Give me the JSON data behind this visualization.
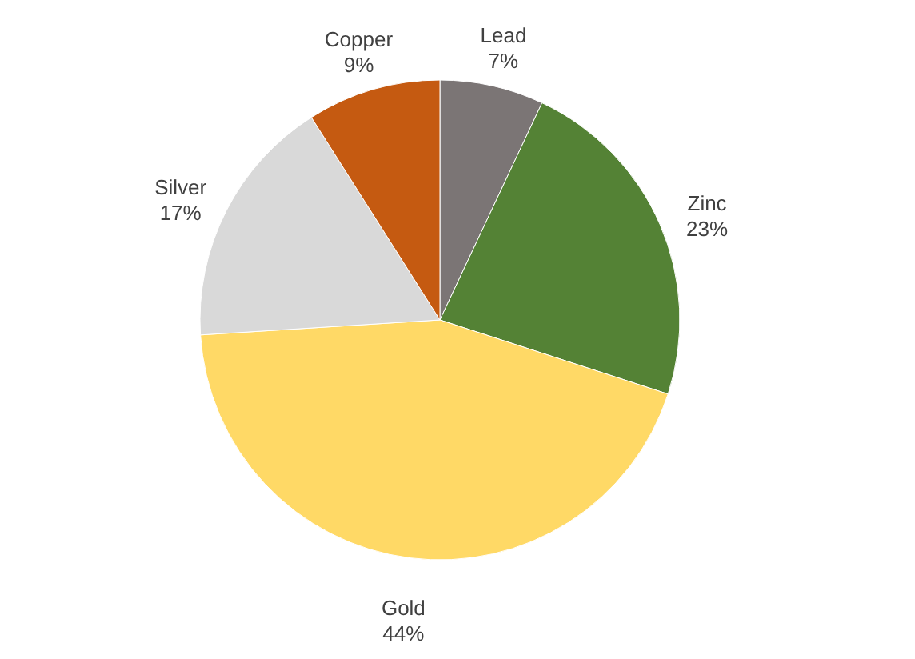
{
  "chart_data": {
    "type": "pie",
    "categories": [
      "Lead",
      "Zinc",
      "Gold",
      "Silver",
      "Copper"
    ],
    "values": [
      7,
      23,
      44,
      17,
      9
    ],
    "colors": [
      "#7b7575",
      "#548235",
      "#ffd966",
      "#d9d9d9",
      "#c55a11"
    ],
    "value_labels": [
      "7%",
      "23%",
      "44%",
      "17%",
      "9%"
    ],
    "legend": false
  }
}
